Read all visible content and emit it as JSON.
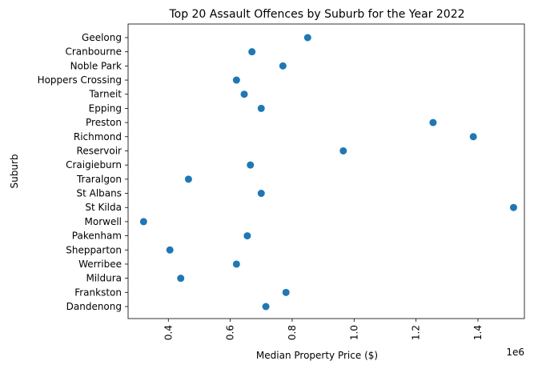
{
  "chart_data": {
    "type": "scatter",
    "title": "Top 20 Assault Offences by Suburb for the Year 2022",
    "xlabel": "Median Property Price ($)",
    "ylabel": "Suburb",
    "x_offset_text": "1e6",
    "xlim": [
      0.27,
      1.55
    ],
    "x_ticks": [
      0.4,
      0.6,
      0.8,
      1.0,
      1.2,
      1.4
    ],
    "x_tick_labels": [
      "0.4",
      "0.6",
      "0.8",
      "1.0",
      "1.2",
      "1.4"
    ],
    "grid": false,
    "marker_color": "#1f77b4",
    "categories": [
      "Geelong",
      "Cranbourne",
      "Noble Park",
      "Hoppers Crossing",
      "Tarneit",
      "Epping",
      "Preston",
      "Richmond",
      "Reservoir",
      "Craigieburn",
      "Traralgon",
      "St Albans",
      "St Kilda",
      "Morwell",
      "Pakenham",
      "Shepparton",
      "Werribee",
      "Mildura",
      "Frankston",
      "Dandenong"
    ],
    "values": [
      0.85,
      0.67,
      0.77,
      0.62,
      0.645,
      0.7,
      1.255,
      1.385,
      0.965,
      0.665,
      0.465,
      0.7,
      1.515,
      0.32,
      0.655,
      0.405,
      0.62,
      0.44,
      0.78,
      0.715
    ]
  }
}
